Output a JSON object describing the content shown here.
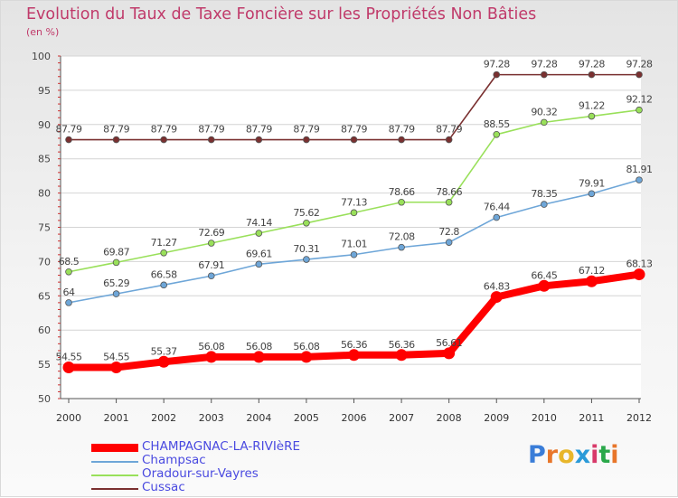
{
  "header": {
    "title": "Evolution du Taux de Taxe Foncière sur les Propriétés Non Bâties",
    "unit": "(en %)"
  },
  "chart_data": {
    "type": "line",
    "title": "Evolution du Taux de Taxe Foncière sur les Propriétés Non Bâties",
    "ylabel": "(en %)",
    "xlabel": "",
    "ylim": [
      50,
      100
    ],
    "yticks": [
      50,
      55,
      60,
      65,
      70,
      75,
      80,
      85,
      90,
      95,
      100
    ],
    "categories": [
      "2000",
      "2001",
      "2002",
      "2003",
      "2004",
      "2005",
      "2006",
      "2007",
      "2008",
      "2009",
      "2010",
      "2011",
      "2012"
    ],
    "grid": "horizontal",
    "series": [
      {
        "name": "CHAMPAGNAC-LA-RIVIèRE",
        "color": "#ff0000",
        "emphasis": true,
        "values": [
          54.55,
          54.55,
          55.37,
          56.08,
          56.08,
          56.08,
          56.36,
          56.36,
          56.61,
          64.83,
          66.45,
          67.12,
          68.13
        ],
        "labels": [
          "54.55",
          "54.55",
          "55.37",
          "56.08",
          "56.08",
          "56.08",
          "56.36",
          "56.36",
          "56.61",
          "64.83",
          "66.45",
          "67.12",
          "68.13"
        ]
      },
      {
        "name": "Champsac",
        "color": "#6ea6d8",
        "emphasis": false,
        "values": [
          64,
          65.29,
          66.58,
          67.91,
          69.61,
          70.31,
          71.01,
          72.08,
          72.8,
          76.44,
          78.35,
          79.91,
          81.91
        ],
        "labels": [
          "64",
          "65.29",
          "66.58",
          "67.91",
          "69.61",
          "70.31",
          "71.01",
          "72.08",
          "72.8",
          "76.44",
          "78.35",
          "79.91",
          "81.91"
        ]
      },
      {
        "name": "Oradour-sur-Vayres",
        "color": "#99e05a",
        "emphasis": false,
        "values": [
          68.5,
          69.87,
          71.27,
          72.69,
          74.14,
          75.62,
          77.13,
          78.66,
          78.66,
          88.55,
          90.32,
          91.22,
          92.12
        ],
        "labels": [
          "68.5",
          "69.87",
          "71.27",
          "72.69",
          "74.14",
          "75.62",
          "77.13",
          "78.66",
          "78.66",
          "88.55",
          "90.32",
          "91.22",
          "92.12"
        ]
      },
      {
        "name": "Cussac",
        "color": "#7a3030",
        "emphasis": false,
        "values": [
          87.79,
          87.79,
          87.79,
          87.79,
          87.79,
          87.79,
          87.79,
          87.79,
          87.79,
          97.28,
          97.28,
          97.28,
          97.28
        ],
        "labels": [
          "87.79",
          "87.79",
          "87.79",
          "87.79",
          "87.79",
          "87.79",
          "87.79",
          "87.79",
          "87.79",
          "97.28",
          "97.28",
          "97.28",
          "97.28"
        ]
      }
    ],
    "legend_position": "bottom-left"
  },
  "logo": {
    "letters": [
      "P",
      "r",
      "o",
      "x",
      "i",
      "t",
      "i"
    ],
    "colors": [
      "#3a7dd8",
      "#e8762a",
      "#e8b62a",
      "#2a9ad8",
      "#d83a6a",
      "#2aa84a",
      "#e8762a"
    ]
  }
}
